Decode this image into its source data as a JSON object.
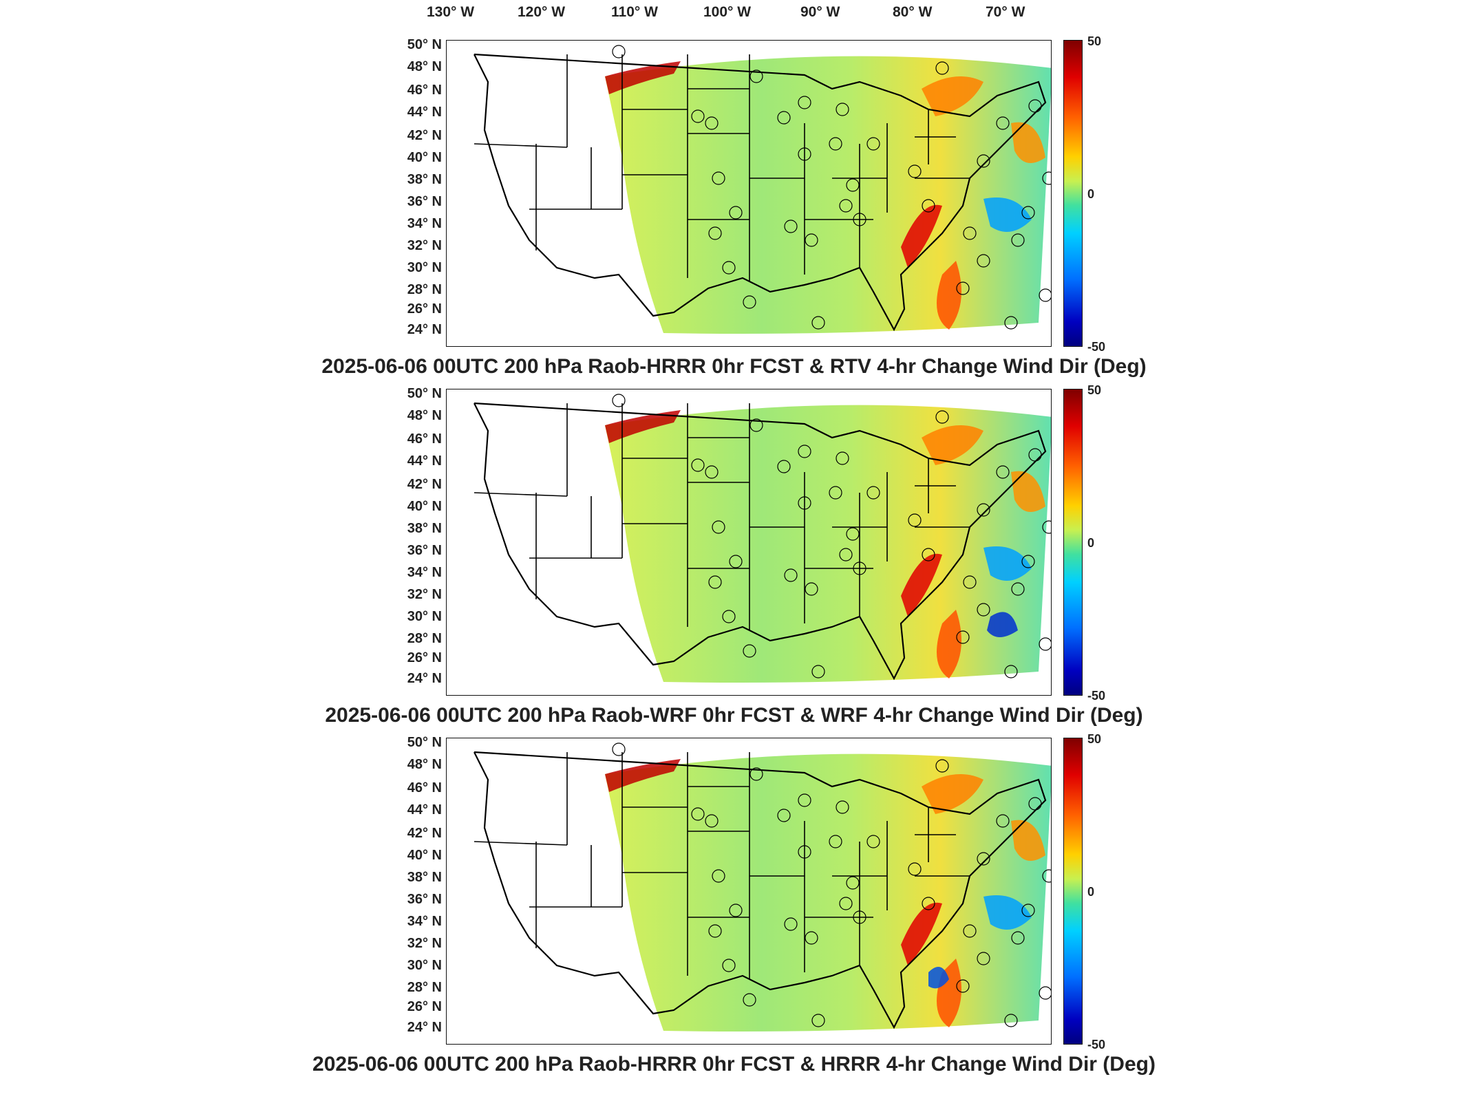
{
  "longitude_labels": [
    "130° W",
    "120° W",
    "110° W",
    "100° W",
    "90° W",
    "80° W",
    "70° W"
  ],
  "latitude_labels": [
    "50° N",
    "48° N",
    "46° N",
    "44° N",
    "42° N",
    "40° N",
    "38° N",
    "36° N",
    "34° N",
    "32° N",
    "30° N",
    "28° N",
    "26° N",
    "24° N"
  ],
  "colorbar": {
    "max_label": "50",
    "mid_label": "0",
    "min_label": "-50",
    "min": -50,
    "max": 50
  },
  "panels": [
    {
      "title": "2025-06-06 00UTC 200 hPa Raob-HRRR 0hr FCST & RTV 4-hr Change Wind Dir (Deg)"
    },
    {
      "title": "2025-06-06 00UTC 200 hPa Raob-WRF 0hr FCST & WRF 4-hr Change Wind Dir (Deg)"
    },
    {
      "title": "2025-06-06 00UTC 200 hPa Raob-HRRR 0hr FCST & HRRR 4-hr Change Wind Dir (Deg)"
    }
  ]
}
